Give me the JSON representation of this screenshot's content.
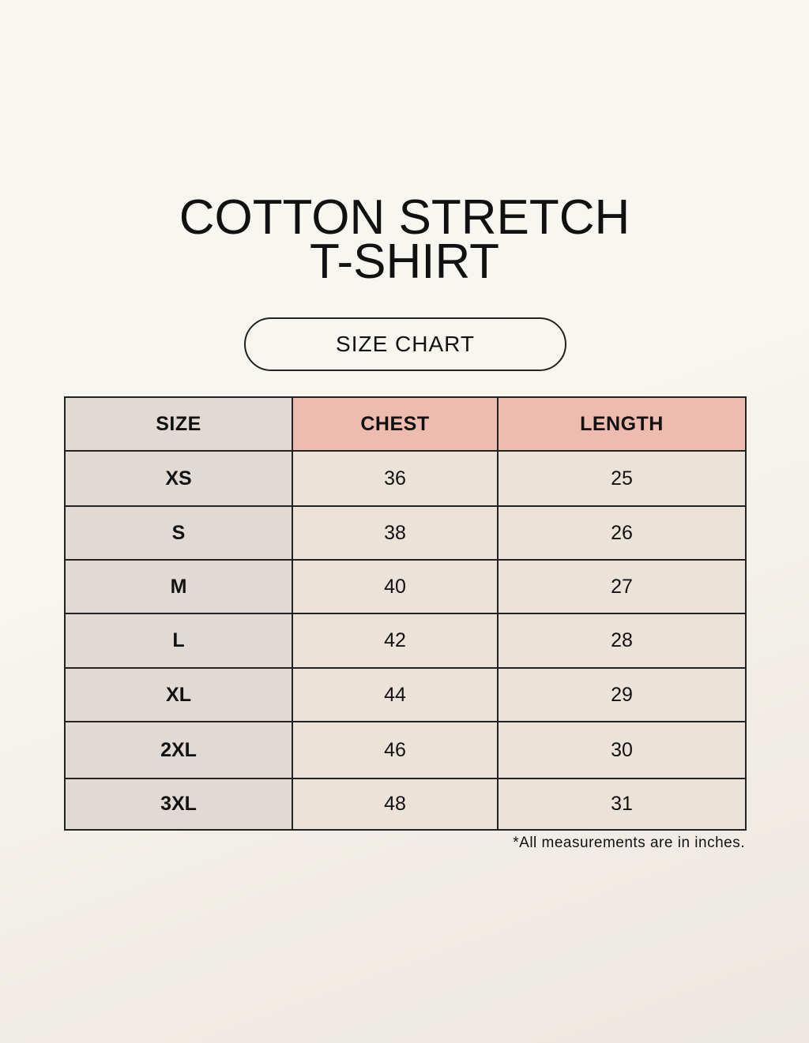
{
  "title": {
    "line1": "COTTON STRETCH",
    "line2": "T-SHIRT"
  },
  "subtitle": "SIZE CHART",
  "table": {
    "headers": [
      "SIZE",
      "CHEST",
      "LENGTH"
    ],
    "rows": [
      [
        "XS",
        "36",
        "25"
      ],
      [
        "S",
        "38",
        "26"
      ],
      [
        "M",
        "40",
        "27"
      ],
      [
        "L",
        "42",
        "28"
      ],
      [
        "XL",
        "44",
        "29"
      ],
      [
        "2XL",
        "46",
        "30"
      ],
      [
        "3XL",
        "48",
        "31"
      ]
    ]
  },
  "footnote": "*All measurements are in inches.",
  "colors": {
    "header_accent": "#eebcae",
    "size_column": "#e0d9d4",
    "value_cells": "#ebe3d8"
  }
}
